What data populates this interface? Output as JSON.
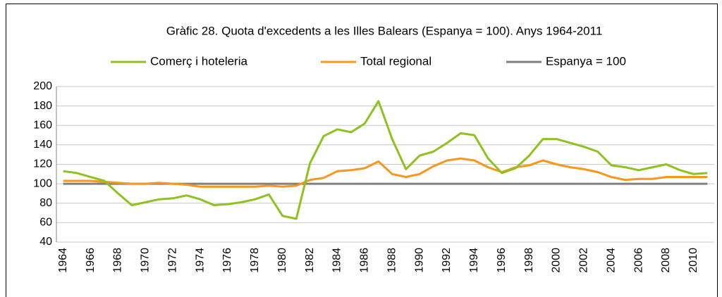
{
  "chart_data": {
    "type": "line",
    "title": "Gràfic 28. Quota d'excedents a les Illes Balears (Espanya = 100). Anys 1964-2011",
    "categories": [
      "1964",
      null,
      "1966",
      null,
      "1968",
      null,
      "1970",
      null,
      "1972",
      null,
      "1974",
      null,
      "1976",
      null,
      "1978",
      null,
      "1980",
      null,
      "1982",
      null,
      "1984",
      null,
      "1986",
      null,
      "1988",
      null,
      "1990",
      null,
      "1992",
      null,
      "1994",
      null,
      "1996",
      null,
      "1998",
      null,
      "2000",
      null,
      "2002",
      null,
      "2004",
      null,
      "2006",
      null,
      "2008",
      null,
      "2010",
      null
    ],
    "series": [
      {
        "name": "Comerç i hoteleria",
        "color": "#8dc21f",
        "values": [
          113,
          111,
          107,
          103,
          90,
          78,
          81,
          84,
          85,
          88,
          84,
          78,
          79,
          81,
          84,
          89,
          67,
          64,
          121,
          149,
          156,
          153,
          162,
          185,
          146,
          115,
          129,
          133,
          142,
          152,
          150,
          126,
          111,
          116,
          129,
          146,
          146,
          142,
          138,
          133,
          119,
          117,
          114,
          117,
          120,
          114,
          110,
          111
        ]
      },
      {
        "name": "Total regional",
        "color": "#f7981d",
        "values": [
          103,
          103,
          103,
          102,
          101,
          100,
          100,
          101,
          100,
          99,
          97,
          97,
          97,
          97,
          97,
          98,
          97,
          98,
          104,
          106,
          113,
          114,
          116,
          123,
          110,
          107,
          110,
          118,
          124,
          126,
          124,
          117,
          112,
          117,
          119,
          124,
          120,
          117,
          115,
          112,
          107,
          104,
          105,
          105,
          107,
          107,
          107,
          107
        ]
      },
      {
        "name": "Espanya = 100",
        "color": "#808080",
        "values": [
          100,
          100,
          100,
          100,
          100,
          100,
          100,
          100,
          100,
          100,
          100,
          100,
          100,
          100,
          100,
          100,
          100,
          100,
          100,
          100,
          100,
          100,
          100,
          100,
          100,
          100,
          100,
          100,
          100,
          100,
          100,
          100,
          100,
          100,
          100,
          100,
          100,
          100,
          100,
          100,
          100,
          100,
          100,
          100,
          100,
          100,
          100,
          100
        ]
      }
    ],
    "ylim": [
      40,
      200
    ],
    "yticks": [
      40,
      60,
      80,
      100,
      120,
      140,
      160,
      180,
      200
    ],
    "grid": true,
    "legend": "top"
  }
}
